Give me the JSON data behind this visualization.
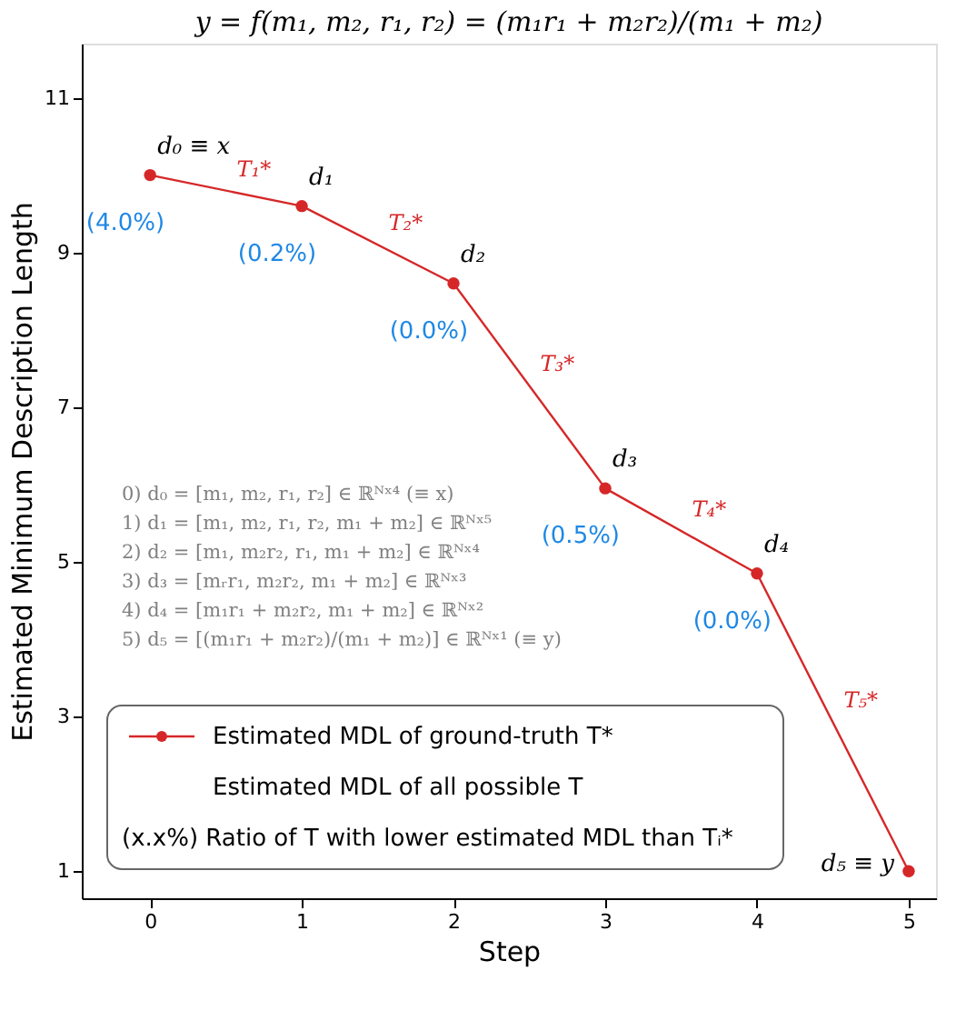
{
  "chart_data": {
    "type": "line",
    "title": "y = f(m₁, m₂, r₁, r₂) = (m₁r₁ + m₂r₂)/(m₁ + m₂)",
    "xlabel": "Step",
    "ylabel": "Estimated Minimum Description Length",
    "x": [
      0,
      1,
      2,
      3,
      4,
      5
    ],
    "series": [
      {
        "name": "Estimated MDL of ground-truth T*",
        "color": "#d62728",
        "values": [
          10.0,
          9.6,
          8.6,
          5.95,
          4.85,
          1.0
        ]
      }
    ],
    "xlim": [
      -0.45,
      5.18
    ],
    "xticks": [
      0,
      1,
      2,
      3,
      4,
      5
    ],
    "ylim": [
      0.65,
      11.7
    ],
    "yticks": [
      1,
      3,
      5,
      7,
      9,
      11
    ],
    "grid": false,
    "marker": "circle",
    "line_style": "solid",
    "legend": "bottom left",
    "annotations": [
      "d₀ ≡ x",
      "d₁",
      "d₂",
      "d₃",
      "d₄",
      "d₅ ≡ y",
      "T₁*",
      "T₂*",
      "T₃*",
      "T₄*",
      "T₅*",
      "(4.0%)",
      "(0.2%)",
      "(0.0%)",
      "(0.5%)",
      "(0.0%)",
      "0) d₀ = [m₁, m₂, r₁, r₂] ∈ ℝᴺˣ⁴ (≡ x)",
      "1) d₁ = [m₁, m₂, r₁, r₂, m₁ + m₂] ∈ ℝᴺˣ⁵",
      "2) d₂ = [m₁, m₂r₂, r₁, m₁ + m₂] ∈ ℝᴺˣ⁴",
      "3) d₃ = [mᵣr₁, m₂r₂, m₁ + m₂] ∈ ℝᴺˣ³",
      "4) d₄ = [m₁r₁ + m₂r₂, m₁ + m₂] ∈ ℝᴺˣ²",
      "5) d₅ = [(m₁r₁ + m₂r₂)/(m₁ + m₂)] ∈ ℝᴺˣ¹ (≡ y)",
      "Estimated MDL of all possible T",
      "(x.x%)  Ratio of T with lower estimated MDL than Tᵢ*"
    ]
  }
}
